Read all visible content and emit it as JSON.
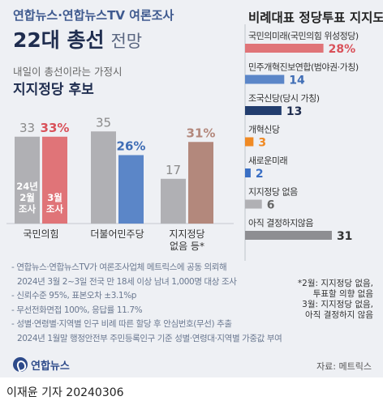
{
  "header": {
    "subtitle": "연합뉴스·연합뉴스TV 여론조사",
    "title_bold": "22대 총선",
    "title_light": "전망"
  },
  "left_panel": {
    "subtitle": "내일이 총선이라는 가정시",
    "title": "지지정당 후보",
    "legend": {
      "feb_line1": "24년",
      "feb_line2": "2월",
      "feb_line3": "조사",
      "mar_line1": "3월",
      "mar_line2": "조사"
    },
    "colors": {
      "feb": "#b0b0b4",
      "ppp": "#e07478",
      "dp": "#5b86c8",
      "other": "#b3887c",
      "feb_label": "#8a8a8a"
    }
  },
  "right_panel": {
    "title": "비례대표 정당투표 지지도"
  },
  "chart_data": [
    {
      "type": "bar",
      "title": "지지정당 후보",
      "categories": [
        "국민의힘",
        "더불어민주당",
        "지지정당 없음 등*"
      ],
      "category_lines": [
        [
          "국민의힘"
        ],
        [
          "더불어민주당"
        ],
        [
          "지지정당",
          "없음 등*"
        ]
      ],
      "series": [
        {
          "name": "24년 2월 조사",
          "values": [
            33,
            35,
            17
          ],
          "labels": [
            "33",
            "35",
            "17"
          ]
        },
        {
          "name": "3월 조사",
          "values": [
            33,
            26,
            31
          ],
          "labels": [
            "33%",
            "26%",
            "31%"
          ]
        }
      ],
      "ylim": [
        0,
        40
      ]
    },
    {
      "type": "bar",
      "orientation": "horizontal",
      "title": "비례대표 정당투표 지지도",
      "categories": [
        "국민의미래(국민의힘 위성정당)",
        "민주개혁진보연합(범야권·가칭)",
        "조국신당(당시 가칭)",
        "개혁신당",
        "새로운미래",
        "지지정당 없음",
        "아직 결정하지않음"
      ],
      "values": [
        28,
        14,
        13,
        3,
        2,
        6,
        31
      ],
      "labels": [
        "28%",
        "14",
        "13",
        "3",
        "2",
        "6",
        "31"
      ],
      "colors": [
        "#e07478",
        "#5b86c8",
        "#223d6e",
        "#f08a24",
        "#3a6fc4",
        "#b0b0b4",
        "#8e8e92"
      ],
      "label_colors": [
        "#d9515a",
        "#3f6db5",
        "#1f2d4f",
        "#f08a24",
        "#3a6fc4",
        "#666666",
        "#333333"
      ],
      "xlim": [
        0,
        40
      ]
    }
  ],
  "notes": [
    "- 연합뉴스·연합뉴스TV가 여론조사업체 메트릭스에 공동 의뢰해",
    "2024년 3월 2~3일 전국 만 18세 이상 남녀 1,000명 대상 조사",
    "- 신뢰수준 95%, 표본오차 ±3.1%p",
    "- 무선전화면접 100%, 응답률 11.7%",
    "- 성별·연령별·지역별 인구 비례 따른 할당 후 안심번호(무선) 추출",
    "2024년 1월말 행정안전부 주민등록인구 기준 성별·연령대·지역별 가중값 부여"
  ],
  "footnote": {
    "line1": "*2월: 지지정당 없음,",
    "line2": "투표할 의향 없음",
    "line3": "3월: 지지정당 없음,",
    "line4": "아직 결정하지 않음"
  },
  "source": "자료: 메트릭스",
  "logo_text": "연합뉴스",
  "credit": "이재윤 기자  20240306"
}
